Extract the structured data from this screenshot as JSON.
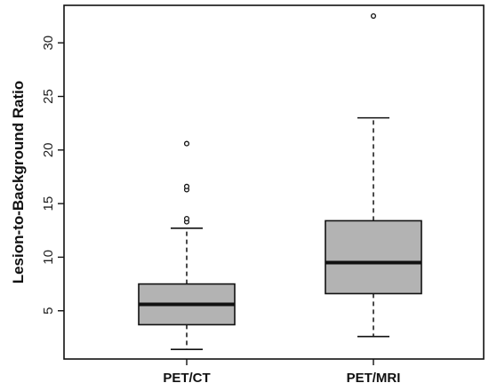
{
  "chart_data": {
    "type": "box",
    "ylabel": "Lesion-to-Background Ratio",
    "xlabel": "",
    "ylim": [
      0.5,
      33.5
    ],
    "yticks": [
      5,
      10,
      15,
      20,
      25,
      30
    ],
    "categories": [
      "PET/CT",
      "PET/MRI"
    ],
    "boxes": [
      {
        "category": "PET/CT",
        "whisker_low": 1.4,
        "q1": 3.7,
        "median": 5.6,
        "q3": 7.5,
        "whisker_high": 12.7,
        "outliers": [
          13.3,
          13.6,
          16.3,
          16.6,
          20.6
        ]
      },
      {
        "category": "PET/MRI",
        "whisker_low": 2.6,
        "q1": 6.6,
        "median": 9.5,
        "q3": 13.4,
        "whisker_high": 23.0,
        "outliers": [
          32.5
        ]
      }
    ],
    "grid": false,
    "colors": {
      "box_fill": "#b3b3b3",
      "stroke": "#111111"
    }
  }
}
